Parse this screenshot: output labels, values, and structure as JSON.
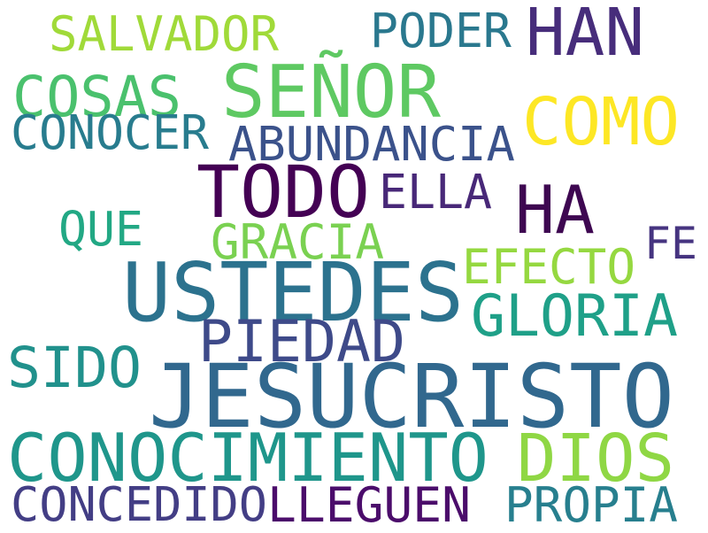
{
  "words": [
    {
      "text": "SALVADOR",
      "color": "#a0da39"
    },
    {
      "text": "PODER",
      "color": "#2a788e"
    },
    {
      "text": "HAN",
      "color": "#472d7b"
    },
    {
      "text": "COSAS",
      "color": "#4ac16d"
    },
    {
      "text": "SEÑOR",
      "color": "#5ec962"
    },
    {
      "text": "COMO",
      "color": "#fde725"
    },
    {
      "text": "CONOCER",
      "color": "#287c8e"
    },
    {
      "text": "ABUNDANCIA",
      "color": "#3b528b"
    },
    {
      "text": "TODO",
      "color": "#440154"
    },
    {
      "text": "ELLA",
      "color": "#482878"
    },
    {
      "text": "HA",
      "color": "#3e0751"
    },
    {
      "text": "QUE",
      "color": "#22a884"
    },
    {
      "text": "GRACIA",
      "color": "#7ad151"
    },
    {
      "text": "FE",
      "color": "#463480"
    },
    {
      "text": "EFECTO",
      "color": "#95d840"
    },
    {
      "text": "USTEDES",
      "color": "#2c728e"
    },
    {
      "text": "GLORIA",
      "color": "#1fa088"
    },
    {
      "text": "PIEDAD",
      "color": "#3e4a89"
    },
    {
      "text": "SIDO",
      "color": "#21918c"
    },
    {
      "text": "JESUCRISTO",
      "color": "#31688e"
    },
    {
      "text": "CONOCIMIENTO",
      "color": "#1f968b"
    },
    {
      "text": "DIOS",
      "color": "#8fd744"
    },
    {
      "text": "CONCEDIDO",
      "color": "#433e85"
    },
    {
      "text": "LLEGUEN",
      "color": "#4b0c6b"
    },
    {
      "text": "PROPIA",
      "color": "#277f8e"
    }
  ]
}
